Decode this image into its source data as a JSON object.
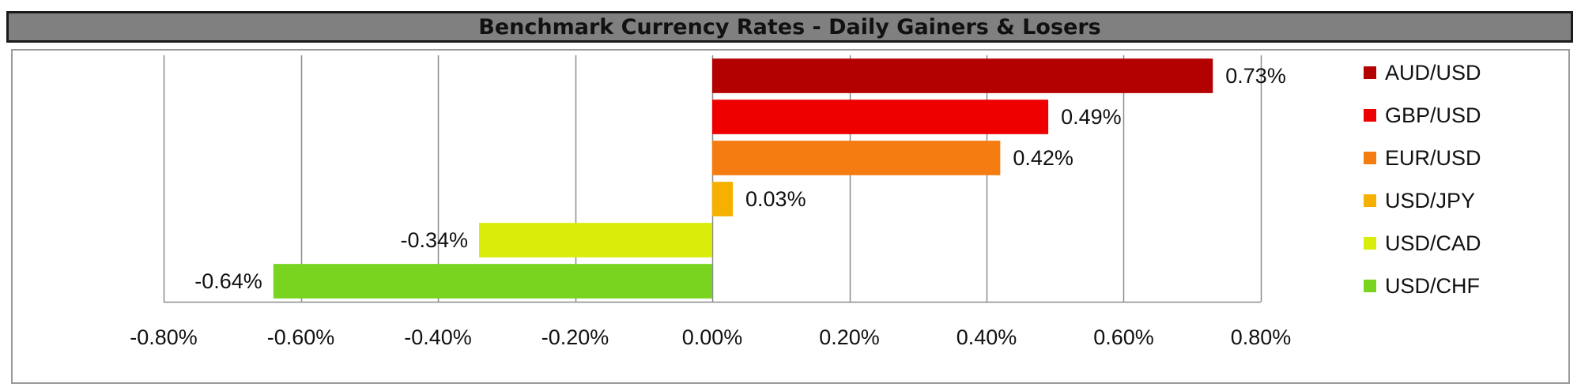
{
  "chart_data": {
    "type": "bar",
    "orientation": "horizontal",
    "title": "Benchmark Currency Rates - Daily Gainers & Losers",
    "categories": [
      "AUD/USD",
      "GBP/USD",
      "EUR/USD",
      "USD/JPY",
      "USD/CAD",
      "USD/CHF"
    ],
    "values": [
      0.73,
      0.49,
      0.42,
      0.03,
      -0.34,
      -0.64
    ],
    "value_labels": [
      "0.73%",
      "0.49%",
      "0.42%",
      "0.03%",
      "-0.34%",
      "-0.64%"
    ],
    "colors": [
      "#b30000",
      "#ee0000",
      "#f47c10",
      "#f5b000",
      "#d9ec0a",
      "#78d41e"
    ],
    "xlim": [
      -0.8,
      0.8
    ],
    "x_ticks": [
      -0.8,
      -0.6,
      -0.4,
      -0.2,
      0.0,
      0.2,
      0.4,
      0.6,
      0.8
    ],
    "x_tick_labels": [
      "-0.80%",
      "-0.60%",
      "-0.40%",
      "-0.20%",
      "0.00%",
      "0.20%",
      "0.40%",
      "0.60%",
      "0.80%"
    ],
    "grid": "vertical",
    "legend": "right",
    "xlabel": "",
    "ylabel": ""
  }
}
